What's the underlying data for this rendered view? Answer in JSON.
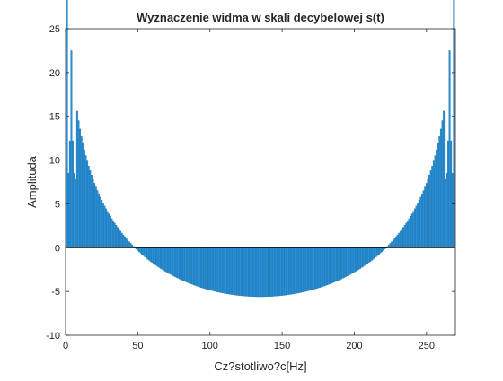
{
  "chart_data": {
    "type": "bar",
    "title": "Wyznaczenie widma w skali decybelowej s(t)",
    "xlabel": "Cz?stotliwo?c[Hz]",
    "ylabel": "Amplituda",
    "xlim": [
      0,
      270
    ],
    "ylim": [
      -10,
      25
    ],
    "xticks": [
      0,
      50,
      100,
      150,
      200,
      250
    ],
    "yticks": [
      -10,
      -5,
      0,
      5,
      10,
      15,
      20,
      25
    ],
    "bar_color": "#2a8fd4",
    "bar_edge_color": "#1a6fa8",
    "box": true,
    "grid": false,
    "spectrum_model": {
      "bin_start": 1,
      "bin_end": 269,
      "mirror_center": 135,
      "min_db": -5.6,
      "peak_bin": 4,
      "peak_db": 22.5,
      "peak_neighbors": [
        [
          2,
          8.5
        ],
        [
          3,
          12.2
        ],
        [
          5,
          12.2
        ],
        [
          6,
          8.5
        ],
        [
          7,
          7.8
        ]
      ]
    },
    "series": [
      {
        "x": [
          1,
          2,
          3,
          4,
          5,
          6,
          7,
          10,
          15,
          20,
          25,
          30,
          50,
          75,
          100,
          135,
          170,
          195,
          220,
          240,
          245,
          250,
          255,
          260,
          263,
          264,
          265,
          266,
          267,
          268,
          269
        ],
        "values": [
          6.0,
          8.5,
          12.2,
          22.5,
          12.2,
          8.5,
          7.8,
          4.9,
          2.7,
          1.0,
          -0.3,
          -1.3,
          -3.8,
          -4.9,
          -5.4,
          -5.6,
          -5.4,
          -4.7,
          -3.1,
          -1.0,
          -0.3,
          0.7,
          1.8,
          4.0,
          6.2,
          7.8,
          8.5,
          12.2,
          22.5,
          12.2,
          8.5
        ]
      }
    ]
  }
}
